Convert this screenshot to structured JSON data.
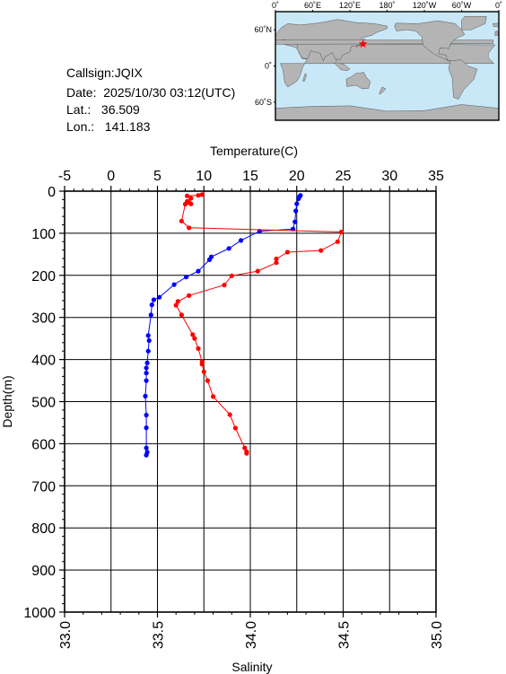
{
  "info": {
    "callsign": "Callsign:JQIX",
    "date": "Date:  2025/10/30 03:12(UTC)",
    "lat": "Lat.:   36.509",
    "lon": "Lon.:   141.183"
  },
  "map": {
    "lon_labels": [
      "0˚",
      "60˚E",
      "120˚E",
      "180˚",
      "120˚W",
      "60˚W",
      "0˚"
    ],
    "lat_labels": [
      "60˚N",
      "0˚",
      "60˚S"
    ],
    "station": {
      "lon": 141.183,
      "lat": 36.509
    },
    "colors": {
      "ocean": "#c8e8f8",
      "land": "#b4b4b4",
      "marker": "#ff0000"
    }
  },
  "chart_data": {
    "type": "line",
    "top_axis": {
      "label": "Temperature(C)",
      "range": [
        -5,
        35
      ],
      "ticks": [
        "-5",
        "0",
        "5",
        "10",
        "15",
        "20",
        "25",
        "30",
        "35"
      ]
    },
    "bottom_axis": {
      "label": "Salinity",
      "range": [
        33.0,
        35.0
      ],
      "ticks": [
        "33.0",
        "33.5",
        "34.0",
        "34.5",
        "35.0"
      ]
    },
    "y_axis": {
      "label": "Depth(m)",
      "range": [
        0,
        1000
      ],
      "inverted": true,
      "ticks": [
        "0",
        "100",
        "200",
        "300",
        "400",
        "500",
        "600",
        "700",
        "800",
        "900",
        "1000"
      ]
    },
    "grid": true,
    "series": [
      {
        "axis": "temperature",
        "color": "#0000ff",
        "points": [
          [
            20.4,
            10
          ],
          [
            20.3,
            13
          ],
          [
            20.2,
            18
          ],
          [
            20.0,
            30
          ],
          [
            19.9,
            47
          ],
          [
            19.8,
            73
          ],
          [
            19.6,
            90
          ],
          [
            16.0,
            95
          ],
          [
            14.0,
            117
          ],
          [
            12.7,
            136
          ],
          [
            10.8,
            156
          ],
          [
            10.6,
            163
          ],
          [
            9.4,
            190
          ],
          [
            8.1,
            204
          ],
          [
            6.8,
            222
          ],
          [
            5.2,
            252
          ],
          [
            4.6,
            258
          ],
          [
            4.4,
            270
          ],
          [
            4.3,
            294
          ],
          [
            4.0,
            343
          ],
          [
            4.1,
            355
          ],
          [
            4.0,
            380
          ],
          [
            3.9,
            408
          ],
          [
            3.8,
            420
          ],
          [
            3.8,
            432
          ],
          [
            3.8,
            450
          ],
          [
            3.7,
            487
          ],
          [
            3.8,
            532
          ],
          [
            3.8,
            562
          ],
          [
            3.8,
            610
          ],
          [
            3.9,
            620
          ],
          [
            3.8,
            627
          ]
        ]
      },
      {
        "axis": "salinity",
        "color": "#ff0000",
        "points": [
          [
            33.74,
            8
          ],
          [
            33.72,
            10
          ],
          [
            33.66,
            11
          ],
          [
            33.68,
            17
          ],
          [
            33.66,
            24
          ],
          [
            33.67,
            27
          ],
          [
            33.68,
            30
          ],
          [
            33.65,
            31
          ],
          [
            33.63,
            71
          ],
          [
            33.67,
            87
          ],
          [
            34.49,
            97
          ],
          [
            34.47,
            120
          ],
          [
            34.38,
            141
          ],
          [
            34.2,
            145
          ],
          [
            34.14,
            161
          ],
          [
            34.14,
            170
          ],
          [
            34.04,
            190
          ],
          [
            33.9,
            201
          ],
          [
            33.86,
            223
          ],
          [
            33.67,
            248
          ],
          [
            33.61,
            262
          ],
          [
            33.6,
            271
          ],
          [
            33.63,
            294
          ],
          [
            33.69,
            341
          ],
          [
            33.7,
            350
          ],
          [
            33.72,
            374
          ],
          [
            33.74,
            405
          ],
          [
            33.74,
            411
          ],
          [
            33.75,
            429
          ],
          [
            33.77,
            450
          ],
          [
            33.8,
            488
          ],
          [
            33.89,
            531
          ],
          [
            33.92,
            563
          ],
          [
            33.97,
            610
          ],
          [
            33.98,
            619
          ],
          [
            33.98,
            623
          ]
        ]
      }
    ]
  }
}
